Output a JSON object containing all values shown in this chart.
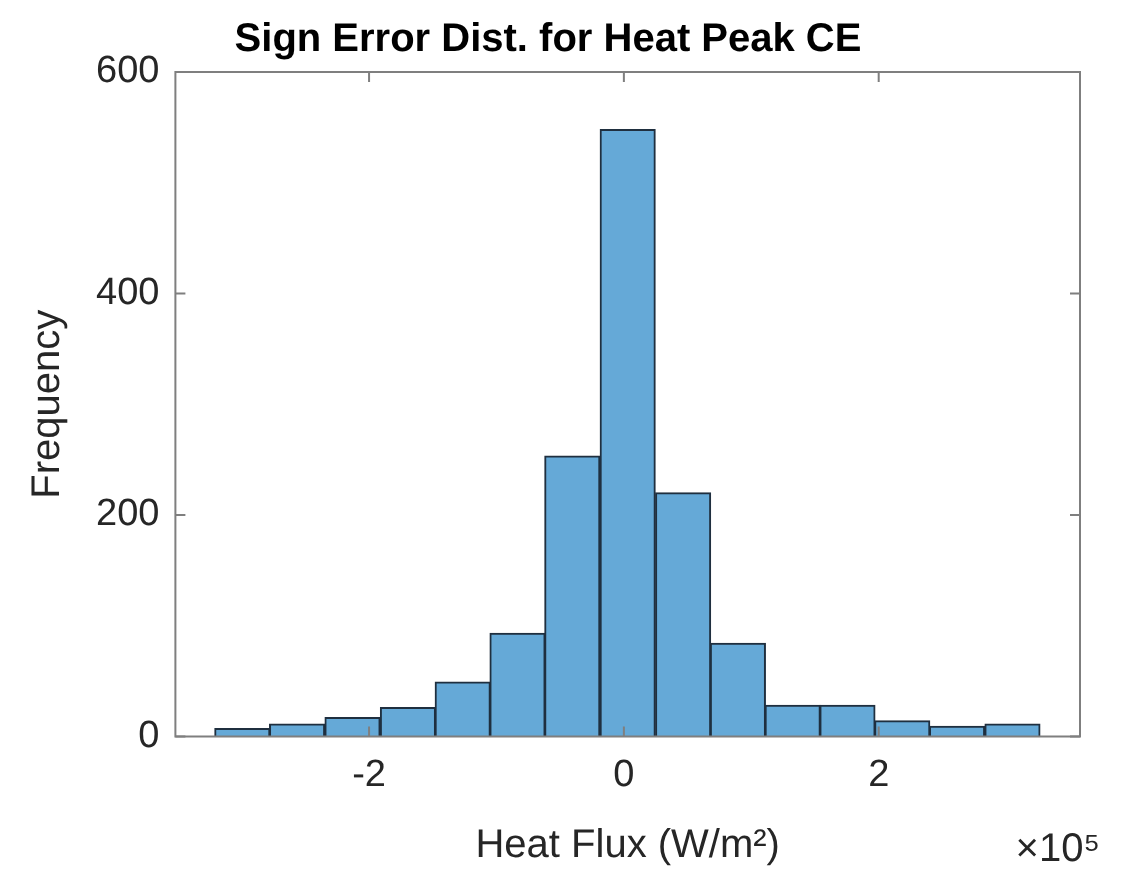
{
  "chart_data": {
    "type": "histogram",
    "title": "Sign Error Dist. for Heat Peak CE",
    "xlabel": "Heat Flux (W/m²)",
    "ylabel": "Frequency",
    "annotations": [
      "×10⁵"
    ],
    "bins": [
      -3.21,
      -2.78,
      -2.35,
      -1.91,
      -1.48,
      -1.05,
      -0.62,
      -0.19,
      0.25,
      0.68,
      1.11,
      1.54,
      1.97,
      2.4,
      2.83,
      3.27
    ],
    "values": [
      7,
      11,
      17,
      26,
      49,
      93,
      253,
      548,
      220,
      84,
      28,
      28,
      14,
      9,
      11
    ],
    "color": "#65a9d7",
    "xlim": [
      -3.52,
      3.58
    ],
    "xticks": [
      -2,
      0,
      2
    ],
    "ylim": [
      0,
      600
    ],
    "yticks": [
      0,
      200,
      400,
      600
    ],
    "grid": false,
    "legend": false
  }
}
